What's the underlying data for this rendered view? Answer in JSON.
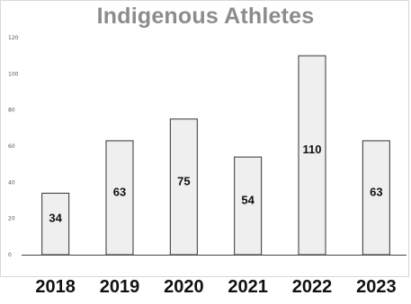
{
  "chart_data": {
    "type": "bar",
    "title": "Indigenous Athletes",
    "xlabel": "",
    "ylabel": "",
    "categories": [
      "2018",
      "2019",
      "2020",
      "2021",
      "2022",
      "2023"
    ],
    "values": [
      34,
      63,
      75,
      54,
      110,
      63
    ],
    "data_labels": [
      "34",
      "63",
      "75",
      "54",
      "110",
      "63"
    ],
    "yticks": [
      0,
      20,
      40,
      60,
      80,
      100,
      120
    ],
    "ylim": [
      0,
      120
    ],
    "grid": false,
    "legend": "none",
    "colors": {
      "bar_fill": "#efefef",
      "bar_stroke": "#333333",
      "title": "#8c8c8c",
      "axis": "#444444"
    }
  }
}
